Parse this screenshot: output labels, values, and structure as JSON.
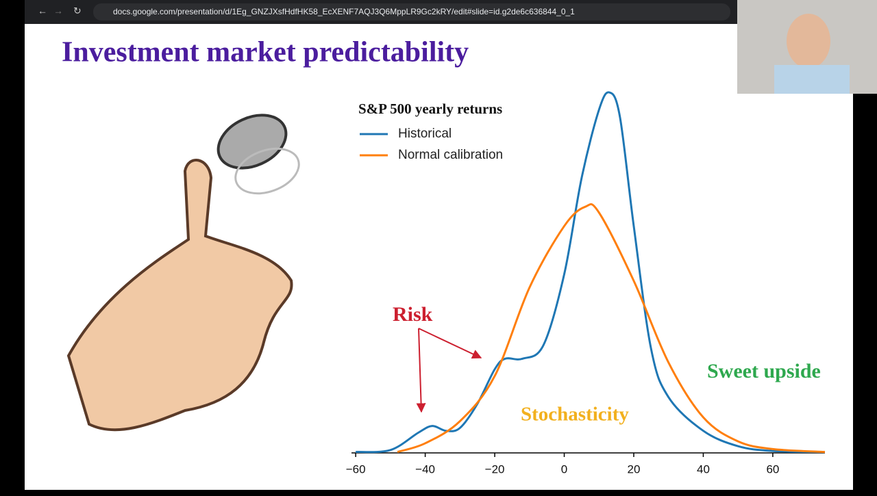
{
  "browser": {
    "url": "docs.google.com/presentation/d/1Eg_GNZJXsfHdfHK58_EcXENF7AQJ3Q6MppLR9Gc2kRY/edit#slide=id.g2de6c636844_0_1"
  },
  "slide": {
    "title": "Investment market predictability"
  },
  "chart_data": {
    "type": "line",
    "title": "S&P 500 yearly returns",
    "series": [
      {
        "name": "Historical",
        "color": "#1f77b4",
        "x": [
          -60,
          -50,
          -42,
          -38,
          -34,
          -30,
          -25,
          -20,
          -17,
          -12,
          -6,
          0,
          5,
          10,
          13,
          16,
          20,
          25,
          30,
          40,
          50,
          60,
          75
        ],
        "values": [
          0.0001,
          0.0003,
          0.0021,
          0.0028,
          0.0023,
          0.0026,
          0.0051,
          0.0087,
          0.0098,
          0.0098,
          0.0112,
          0.0186,
          0.0286,
          0.0357,
          0.0375,
          0.035,
          0.0236,
          0.0108,
          0.0058,
          0.0023,
          0.0007,
          0.0002,
          0.0001
        ]
      },
      {
        "name": "Normal calibration",
        "color": "#ff7f0e",
        "x": [
          -48,
          -40,
          -30,
          -20,
          -10,
          0,
          6,
          10,
          20,
          30,
          40,
          50,
          60,
          75
        ],
        "values": [
          0.0001,
          0.001,
          0.0033,
          0.008,
          0.0172,
          0.0236,
          0.0256,
          0.025,
          0.0179,
          0.0094,
          0.0037,
          0.0012,
          0.0004,
          0.0001
        ]
      }
    ],
    "xlim": [
      -62,
      75
    ],
    "xticks": [
      {
        "value": -60,
        "label": "−60"
      },
      {
        "value": -40,
        "label": "−40"
      },
      {
        "value": -20,
        "label": "−20"
      },
      0,
      20,
      40,
      60
    ],
    "ylim": [
      0,
      0.04
    ],
    "annotations": [
      {
        "text": "Risk",
        "color": "#cc1f2f"
      },
      {
        "text": "Stochasticity",
        "color": "#f2b01e"
      },
      {
        "text": "Sweet upside",
        "color": "#2ea84e"
      }
    ]
  }
}
